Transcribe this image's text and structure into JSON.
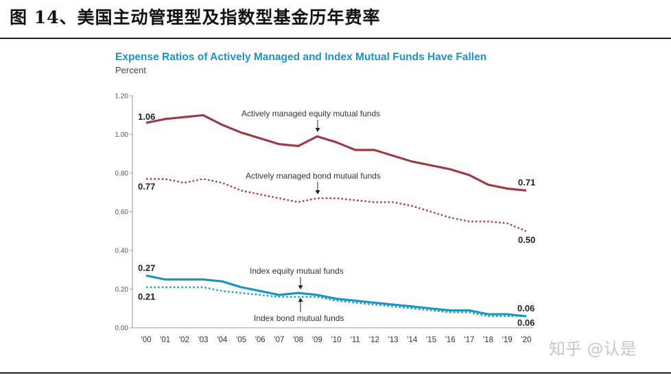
{
  "figure_title": "图 14、美国主动管理型及指数型基金历年费率",
  "watermark": "知乎 @认是",
  "colors": {
    "active": "#9e3a45",
    "index": "#1b95c2",
    "title": "#1b95c2"
  },
  "chart_data": {
    "type": "line",
    "title": "Expense Ratios of Actively Managed and Index Mutual Funds Have Fallen",
    "ylabel": "Percent",
    "ylim": [
      0,
      1.2
    ],
    "yticks": [
      "0.00",
      "0.20",
      "0.40",
      "0.60",
      "0.80",
      "1.00",
      "1.20"
    ],
    "categories": [
      "'00",
      "'01",
      "'02",
      "'03",
      "'04",
      "'05",
      "'06",
      "'07",
      "'08",
      "'09",
      "'10",
      "'11",
      "'12",
      "'13",
      "'14",
      "'15",
      "'16",
      "'17",
      "'18",
      "'19",
      "'20"
    ],
    "series": [
      {
        "name": "Actively managed equity mutual funds",
        "style": "solid",
        "color": "#9e3a45",
        "values": [
          1.06,
          1.08,
          1.09,
          1.1,
          1.05,
          1.01,
          0.98,
          0.95,
          0.94,
          0.99,
          0.96,
          0.92,
          0.92,
          0.89,
          0.86,
          0.84,
          0.82,
          0.79,
          0.74,
          0.72,
          0.71
        ]
      },
      {
        "name": "Actively managed bond mutual funds",
        "style": "dotted",
        "color": "#9e3a45",
        "values": [
          0.77,
          0.77,
          0.75,
          0.77,
          0.75,
          0.71,
          0.69,
          0.67,
          0.65,
          0.67,
          0.67,
          0.66,
          0.65,
          0.65,
          0.63,
          0.6,
          0.57,
          0.55,
          0.55,
          0.54,
          0.5
        ]
      },
      {
        "name": "Index equity mutual funds",
        "style": "solid",
        "color": "#1b95c2",
        "values": [
          0.27,
          0.25,
          0.25,
          0.25,
          0.24,
          0.21,
          0.19,
          0.17,
          0.18,
          0.17,
          0.15,
          0.14,
          0.13,
          0.12,
          0.11,
          0.1,
          0.09,
          0.09,
          0.07,
          0.07,
          0.06
        ]
      },
      {
        "name": "Index bond mutual funds",
        "style": "dotted",
        "color": "#1b95c2",
        "values": [
          0.21,
          0.21,
          0.21,
          0.21,
          0.19,
          0.18,
          0.17,
          0.16,
          0.16,
          0.16,
          0.14,
          0.13,
          0.12,
          0.11,
          0.1,
          0.09,
          0.08,
          0.08,
          0.06,
          0.06,
          0.06
        ]
      }
    ],
    "endpoint_labels": {
      "active_equity_start": "1.06",
      "active_equity_end": "0.71",
      "active_bond_start": "0.77",
      "active_bond_end": "0.50",
      "index_equity_start": "0.27",
      "index_equity_end": "0.06",
      "index_bond_start": "0.21",
      "index_bond_end": "0.06"
    },
    "annotations": {
      "active_equity": "Actively managed equity mutual funds",
      "active_bond": "Actively managed bond mutual funds",
      "index_equity": "Index equity mutual funds",
      "index_bond": "Index bond mutual funds"
    }
  }
}
